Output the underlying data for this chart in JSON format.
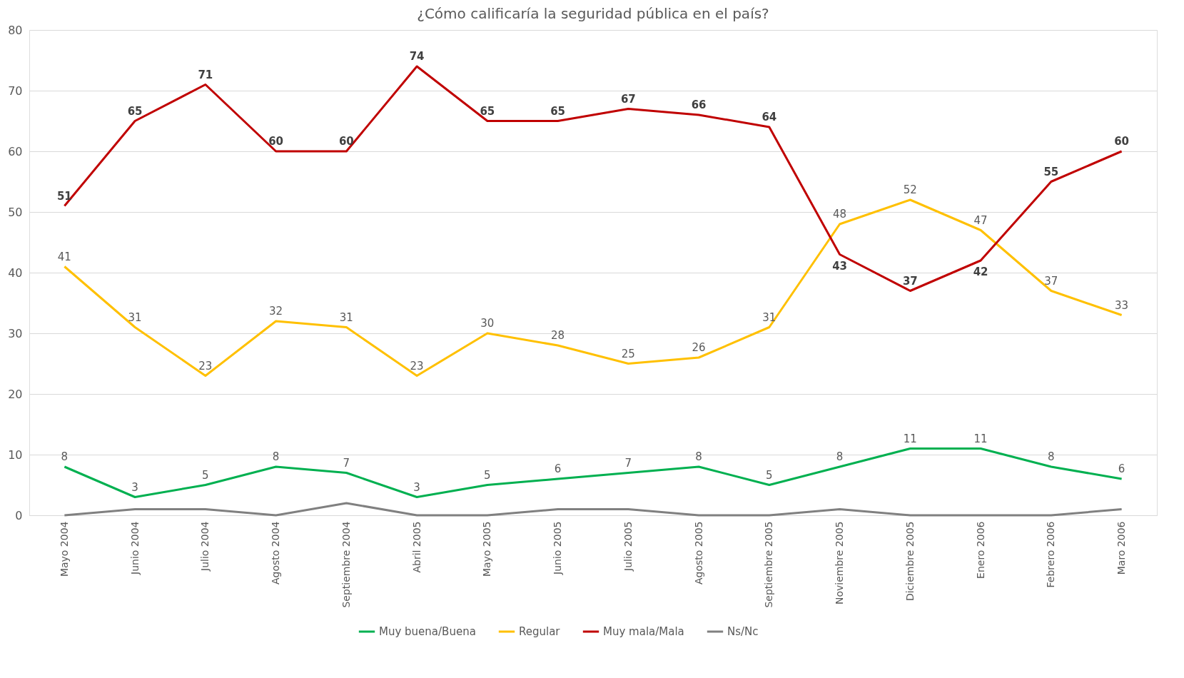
{
  "chart_data": {
    "type": "line",
    "title": "¿Cómo calificaría la seguridad pública en el país?",
    "categories": [
      "Mayo 2004",
      "Junio 2004",
      "Julio 2004",
      "Agosto 2004",
      "Septiembre 2004",
      "Abril 2005",
      "Mayo 2005",
      "Junio 2005",
      "Julio 2005",
      "Agosto 2005",
      "Septiembre 2005",
      "Noviembre 2005",
      "Diciembre 2005",
      "Enero 2006",
      "Febrero 2006",
      "Maro 2006"
    ],
    "series": [
      {
        "name": "Muy buena/Buena",
        "color": "#00b050",
        "values": [
          8,
          3,
          5,
          8,
          7,
          3,
          5,
          6,
          7,
          8,
          5,
          8,
          11,
          11,
          8,
          6
        ],
        "value_labels": [
          "8",
          "3",
          "5",
          "8",
          "7",
          "3",
          "5",
          "6",
          "7",
          "8",
          "5",
          "8",
          "11",
          "11",
          "8",
          "6"
        ]
      },
      {
        "name": "Regular",
        "color": "#ffc000",
        "values": [
          41,
          31,
          23,
          32,
          31,
          23,
          30,
          28,
          25,
          26,
          31,
          48,
          52,
          47,
          37,
          33
        ],
        "value_labels": [
          "41",
          "31",
          "23",
          "32",
          "31",
          "23",
          "30",
          "28",
          "25",
          "26",
          "31",
          "48",
          "52",
          "47",
          "37",
          "33"
        ]
      },
      {
        "name": "Muy mala/Mala",
        "color": "#c00000",
        "values": [
          51,
          65,
          71,
          60,
          60,
          74,
          65,
          65,
          67,
          66,
          64,
          43,
          37,
          42,
          55,
          60
        ],
        "value_labels": [
          "51",
          "65",
          "71",
          "60",
          "60",
          "74",
          "65",
          "65",
          "67",
          "66",
          "64",
          "43",
          "37",
          "42",
          "55",
          "60"
        ]
      },
      {
        "name": "Ns/Nc",
        "color": "#808080",
        "values": [
          0,
          1,
          1,
          0,
          2,
          0,
          0,
          1,
          1,
          0,
          0,
          1,
          0,
          0,
          0,
          1
        ]
      }
    ],
    "ylim": [
      0,
      80
    ],
    "yticks": [
      0,
      10,
      20,
      30,
      40,
      50,
      60,
      70,
      80
    ],
    "grid": "y",
    "legend": "bottom",
    "marker": "none",
    "line_style": "solid"
  }
}
